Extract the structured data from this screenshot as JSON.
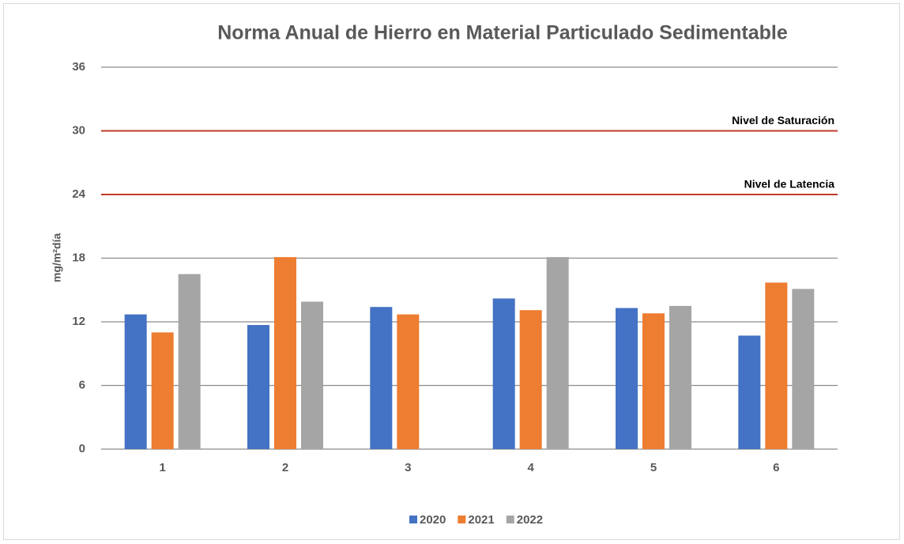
{
  "chart_data": {
    "type": "bar",
    "title": "Norma Anual de Hierro en Material Particulado Sedimentable",
    "y_label": "mg/m²día",
    "categories": [
      "1",
      "2",
      "3",
      "4",
      "5",
      "6"
    ],
    "series": [
      {
        "name": "2020",
        "color": "#4472c4",
        "values": [
          12.7,
          11.7,
          13.4,
          14.2,
          13.3,
          10.7
        ]
      },
      {
        "name": "2021",
        "color": "#ed7d31",
        "values": [
          11.0,
          18.1,
          12.7,
          13.1,
          12.8,
          15.7
        ]
      },
      {
        "name": "2022",
        "color": "#a5a5a5",
        "values": [
          16.5,
          13.9,
          null,
          18.1,
          13.5,
          15.1
        ]
      }
    ],
    "reference_lines": [
      {
        "label": "Nivel de Saturación",
        "value": 30,
        "color": "#c0392b"
      },
      {
        "label": "Nivel de Latencia",
        "value": 24,
        "color": "#c0392b"
      }
    ],
    "ylim": [
      0,
      36
    ],
    "yticks": [
      0,
      6,
      12,
      18,
      24,
      30,
      36
    ],
    "grid": true,
    "legend": "bottom"
  }
}
